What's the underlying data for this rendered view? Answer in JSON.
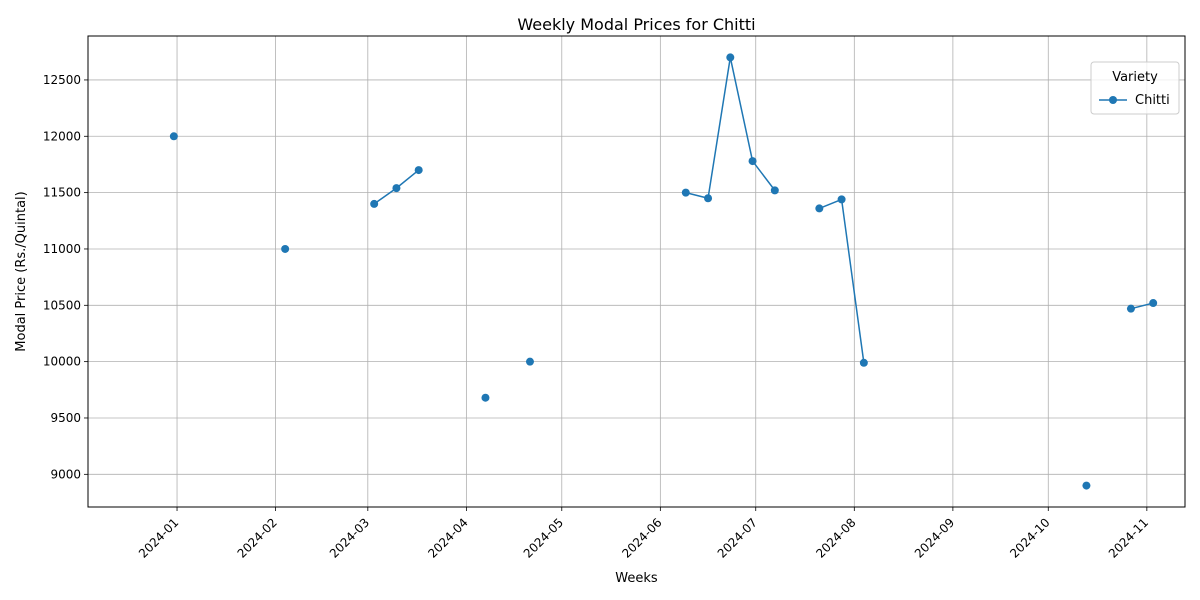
{
  "chart_data": {
    "type": "line",
    "title": "Weekly Modal Prices for Chitti",
    "xlabel": "Weeks",
    "ylabel": "Modal Price (Rs./Quintal)",
    "xlim": [
      "2023-12-04",
      "2024-11-13"
    ],
    "ylim": [
      8710,
      12890
    ],
    "x_ticks": [
      "2024-01",
      "2024-02",
      "2024-03",
      "2024-04",
      "2024-05",
      "2024-06",
      "2024-07",
      "2024-08",
      "2024-09",
      "2024-10",
      "2024-11"
    ],
    "y_ticks": [
      9000,
      9500,
      10000,
      10500,
      11000,
      11500,
      12000,
      12500
    ],
    "grid": true,
    "legend": {
      "title": "Variety",
      "placement": "top-right"
    },
    "series": [
      {
        "name": "Chitti",
        "color": "#1f77b4",
        "marker": "circle",
        "points": [
          {
            "x": "2023-12-31",
            "y": 12000
          },
          {
            "x": "2024-02-04",
            "y": 11000
          },
          {
            "x": "2024-03-03",
            "y": 11400
          },
          {
            "x": "2024-03-10",
            "y": 11540
          },
          {
            "x": "2024-03-17",
            "y": 11700
          },
          {
            "x": "2024-04-07",
            "y": 9680
          },
          {
            "x": "2024-04-21",
            "y": 10000
          },
          {
            "x": "2024-06-09",
            "y": 11500
          },
          {
            "x": "2024-06-16",
            "y": 11450
          },
          {
            "x": "2024-06-23",
            "y": 12700
          },
          {
            "x": "2024-06-30",
            "y": 11780
          },
          {
            "x": "2024-07-07",
            "y": 11520
          },
          {
            "x": "2024-07-21",
            "y": 11360
          },
          {
            "x": "2024-07-28",
            "y": 11440
          },
          {
            "x": "2024-08-04",
            "y": 9990
          },
          {
            "x": "2024-10-13",
            "y": 8900
          },
          {
            "x": "2024-10-27",
            "y": 10470
          },
          {
            "x": "2024-11-03",
            "y": 10520
          }
        ]
      }
    ]
  }
}
